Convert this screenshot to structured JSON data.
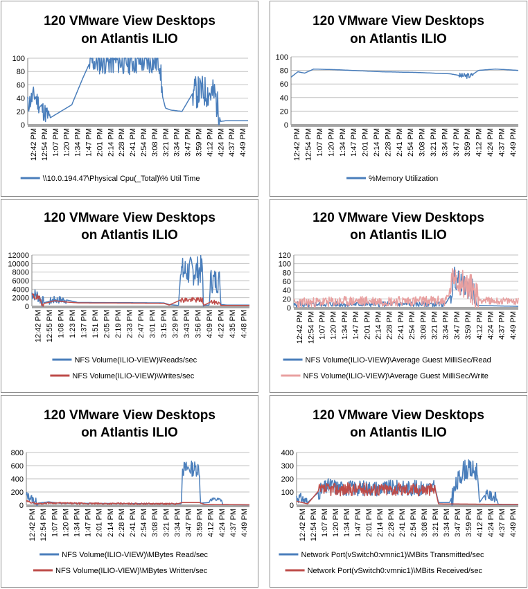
{
  "colors": {
    "blue": "#4a7ebb",
    "red": "#be4b48",
    "pink": "#e8a0a0",
    "grid": "#c0c0c0",
    "axis": "#808080"
  },
  "chart_data": [
    {
      "type": "line",
      "title": "120 VMware View Desktops on Atlantis ILIO",
      "title_lines": [
        "120 VMware View Desktops",
        "on Atlantis ILIO"
      ],
      "ylim": [
        0,
        100
      ],
      "yticks": [
        0,
        20,
        40,
        60,
        80,
        100
      ],
      "xticks": [
        "12:42 PM",
        "12:54 PM",
        "1:07 PM",
        "1:20 PM",
        "1:34 PM",
        "1:47 PM",
        "2:01 PM",
        "2:14 PM",
        "2:28 PM",
        "2:41 PM",
        "2:54 PM",
        "3:08 PM",
        "3:21 PM",
        "3:34 PM",
        "3:47 PM",
        "3:59 PM",
        "4:12 PM",
        "4:24 PM",
        "4:37 PM",
        "4:49 PM"
      ],
      "legend": "bottom",
      "series": [
        {
          "name": "\\\\10.0.194.47\\Physical Cpu(_Total)\\% Util Time",
          "color": "blue",
          "profile": [
            [
              0,
              30
            ],
            [
              0.6,
              45
            ],
            [
              1.2,
              25
            ],
            [
              2,
              10
            ],
            [
              3,
              20
            ],
            [
              4,
              30
            ],
            [
              5,
              70
            ],
            [
              5.6,
              92
            ],
            [
              6,
              95
            ],
            [
              12,
              95
            ],
            [
              12.2,
              45
            ],
            [
              12.5,
              25
            ],
            [
              13,
              22
            ],
            [
              14,
              20
            ],
            [
              15,
              48
            ],
            [
              16,
              50
            ],
            [
              17,
              45
            ],
            [
              17.5,
              5
            ],
            [
              18,
              6
            ],
            [
              20,
              6
            ]
          ],
          "noise": [
            [
              0,
              2,
              15
            ],
            [
              5.6,
              12.2,
              20
            ],
            [
              15,
              17.4,
              25
            ]
          ],
          "seed": 11
        }
      ]
    },
    {
      "type": "line",
      "title": "120 VMware View Desktops on Atlantis ILIO",
      "title_lines": [
        "120 VMware View Desktops",
        "on Atlantis ILIO"
      ],
      "ylim": [
        0,
        100
      ],
      "yticks": [
        0,
        20,
        40,
        60,
        80,
        100
      ],
      "xticks": [
        "12:42 PM",
        "12:54 PM",
        "1:07 PM",
        "1:20 PM",
        "1:34 PM",
        "1:47 PM",
        "2:01 PM",
        "2:14 PM",
        "2:28 PM",
        "2:41 PM",
        "2:54 PM",
        "3:08 PM",
        "3:21 PM",
        "3:34 PM",
        "3:47 PM",
        "3:59 PM",
        "4:12 PM",
        "4:24 PM",
        "4:37 PM",
        "4:49 PM"
      ],
      "legend": "bottom",
      "series": [
        {
          "name": "%Memory Utilization",
          "color": "blue",
          "profile": [
            [
              0,
              70
            ],
            [
              0.6,
              78
            ],
            [
              1.2,
              76
            ],
            [
              2,
              82
            ],
            [
              4,
              81
            ],
            [
              8,
              78
            ],
            [
              11,
              77
            ],
            [
              14,
              75
            ],
            [
              15,
              72
            ],
            [
              15.8,
              72
            ],
            [
              16.5,
              80
            ],
            [
              18,
              82
            ],
            [
              20,
              80
            ]
          ],
          "noise": [
            [
              14.8,
              16,
              4
            ]
          ],
          "seed": 3
        }
      ]
    },
    {
      "type": "line",
      "title": "120 VMware View Desktops on Atlantis ILIO",
      "title_lines": [
        "120 VMware View Desktops",
        "on Atlantis ILIO"
      ],
      "ylim": [
        0,
        12000
      ],
      "yticks": [
        0,
        2000,
        4000,
        6000,
        8000,
        10000,
        12000
      ],
      "xticks": [
        "12:42 PM",
        "12:55 PM",
        "1:08 PM",
        "1:23 PM",
        "1:37 PM",
        "1:51 PM",
        "2:05 PM",
        "2:19 PM",
        "2:33 PM",
        "2:47 PM",
        "3:01 PM",
        "3:15 PM",
        "3:29 PM",
        "3:43 PM",
        "3:56 PM",
        "4:09 PM",
        "4:22 PM",
        "4:35 PM",
        "4:48 PM"
      ],
      "legend": "bottom",
      "series": [
        {
          "name": "NFS Volume(ILIO-VIEW)\\Reads/sec",
          "color": "blue",
          "profile": [
            [
              0,
              3000
            ],
            [
              0.5,
              2500
            ],
            [
              1,
              800
            ],
            [
              2,
              1500
            ],
            [
              3,
              1500
            ],
            [
              4,
              900
            ],
            [
              11.5,
              800
            ],
            [
              12,
              400
            ],
            [
              12.8,
              200
            ],
            [
              13,
              8000
            ],
            [
              14.9,
              8500
            ],
            [
              15,
              200
            ],
            [
              15.5,
              300
            ],
            [
              15.6,
              6000
            ],
            [
              16.4,
              6000
            ],
            [
              16.5,
              400
            ],
            [
              17,
              300
            ],
            [
              19,
              300
            ]
          ],
          "noise": [
            [
              0,
              1,
              1500
            ],
            [
              1.5,
              3,
              900
            ],
            [
              13,
              15,
              3500
            ],
            [
              15.6,
              16.4,
              3000
            ]
          ],
          "seed": 7
        },
        {
          "name": "NFS Volume(ILIO-VIEW)\\Writes/sec",
          "color": "red",
          "profile": [
            [
              0,
              2500
            ],
            [
              0.5,
              2000
            ],
            [
              1,
              600
            ],
            [
              2,
              1300
            ],
            [
              3,
              1000
            ],
            [
              4,
              800
            ],
            [
              11.5,
              700
            ],
            [
              12,
              300
            ],
            [
              13,
              1500
            ],
            [
              14.9,
              1500
            ],
            [
              15,
              200
            ],
            [
              15.6,
              1000
            ],
            [
              16.4,
              800
            ],
            [
              16.5,
              200
            ],
            [
              19,
              200
            ]
          ],
          "noise": [
            [
              0,
              1,
              800
            ],
            [
              13,
              15,
              600
            ],
            [
              15.6,
              16.4,
              500
            ]
          ],
          "seed": 19
        }
      ]
    },
    {
      "type": "line",
      "title": "120 VMware View Desktops on Atlantis ILIO",
      "title_lines": [
        "120 VMware View Desktops",
        "on Atlantis ILIO"
      ],
      "ylim": [
        0,
        120
      ],
      "yticks": [
        0,
        20,
        40,
        60,
        80,
        100,
        120
      ],
      "xticks": [
        "12:42 PM",
        "12:54 PM",
        "1:07 PM",
        "1:20 PM",
        "1:34 PM",
        "1:47 PM",
        "2:01 PM",
        "2:14 PM",
        "2:28 PM",
        "2:41 PM",
        "2:54 PM",
        "3:08 PM",
        "3:21 PM",
        "3:34 PM",
        "3:47 PM",
        "3:59 PM",
        "4:12 PM",
        "4:24 PM",
        "4:37 PM",
        "4:49 PM"
      ],
      "legend": "bottom",
      "series": [
        {
          "name": "NFS Volume(ILIO-VIEW)\\Average Guest MilliSec/Read",
          "color": "blue",
          "profile": [
            [
              0,
              5
            ],
            [
              0.5,
              10
            ],
            [
              1,
              5
            ],
            [
              2,
              8
            ],
            [
              13.5,
              8
            ],
            [
              14,
              30
            ],
            [
              14.3,
              70
            ],
            [
              15,
              50
            ],
            [
              16,
              40
            ],
            [
              16.3,
              5
            ],
            [
              20,
              3
            ]
          ],
          "noise": [
            [
              0,
              13.5,
              6
            ],
            [
              14,
              16.2,
              25
            ]
          ],
          "seed": 5
        },
        {
          "name": "NFS Volume(ILIO-VIEW)\\Average Guest MilliSec/Write",
          "color": "pink",
          "profile": [
            [
              0,
              10
            ],
            [
              2,
              12
            ],
            [
              6,
              15
            ],
            [
              13.5,
              15
            ],
            [
              14,
              40
            ],
            [
              14.3,
              80
            ],
            [
              15,
              55
            ],
            [
              16,
              40
            ],
            [
              16.5,
              18
            ],
            [
              18,
              15
            ],
            [
              20,
              15
            ]
          ],
          "noise": [
            [
              0,
              14,
              12
            ],
            [
              14,
              16.5,
              35
            ],
            [
              16.5,
              20,
              8
            ]
          ],
          "seed": 23
        }
      ]
    },
    {
      "type": "line",
      "title": "120 VMware View Desktops on Atlantis ILIO",
      "title_lines": [
        "120 VMware View Desktops",
        "on Atlantis ILIO"
      ],
      "ylim": [
        0,
        800
      ],
      "yticks": [
        0,
        200,
        400,
        600,
        800
      ],
      "xticks": [
        "12:42 PM",
        "12:54 PM",
        "1:07 PM",
        "1:20 PM",
        "1:34 PM",
        "1:47 PM",
        "2:01 PM",
        "2:14 PM",
        "2:28 PM",
        "2:41 PM",
        "2:54 PM",
        "3:08 PM",
        "3:21 PM",
        "3:34 PM",
        "3:47 PM",
        "3:59 PM",
        "4:12 PM",
        "4:24 PM",
        "4:37 PM",
        "4:49 PM"
      ],
      "legend": "bottom",
      "series": [
        {
          "name": "NFS Volume(ILIO-VIEW)\\MBytes Read/sec",
          "color": "blue",
          "profile": [
            [
              0,
              150
            ],
            [
              0.5,
              100
            ],
            [
              1,
              30
            ],
            [
              2,
              50
            ],
            [
              3,
              30
            ],
            [
              13.9,
              20
            ],
            [
              14,
              550
            ],
            [
              15.5,
              560
            ],
            [
              15.6,
              30
            ],
            [
              16.4,
              40
            ],
            [
              16.5,
              90
            ],
            [
              17.5,
              80
            ],
            [
              17.6,
              10
            ],
            [
              20,
              5
            ]
          ],
          "noise": [
            [
              0,
              1,
              60
            ],
            [
              14,
              15.5,
              120
            ],
            [
              16.5,
              17.5,
              30
            ]
          ],
          "seed": 13
        },
        {
          "name": "NFS Volume(ILIO-VIEW)\\MBytes Written/sec",
          "color": "red",
          "profile": [
            [
              0,
              60
            ],
            [
              1,
              20
            ],
            [
              2,
              35
            ],
            [
              5,
              25
            ],
            [
              13.5,
              20
            ],
            [
              14,
              40
            ],
            [
              15.5,
              40
            ],
            [
              16,
              10
            ],
            [
              20,
              5
            ]
          ],
          "noise": [
            [
              0,
              13.5,
              12
            ]
          ],
          "seed": 29
        }
      ]
    },
    {
      "type": "line",
      "title": "120 VMware View Desktops on Atlantis ILIO",
      "title_lines": [
        "120 VMware View Desktops",
        "on Atlantis ILIO"
      ],
      "ylim": [
        0,
        400
      ],
      "yticks": [
        0,
        100,
        200,
        300,
        400
      ],
      "xticks": [
        "12:42 PM",
        "12:54 PM",
        "1:07 PM",
        "1:20 PM",
        "1:34 PM",
        "1:47 PM",
        "2:01 PM",
        "2:14 PM",
        "2:28 PM",
        "2:41 PM",
        "2:54 PM",
        "3:08 PM",
        "3:21 PM",
        "3:34 PM",
        "3:47 PM",
        "3:59 PM",
        "4:12 PM",
        "4:24 PM",
        "4:37 PM",
        "4:49 PM"
      ],
      "legend": "bottom",
      "series": [
        {
          "name": "Network Port(vSwitch0:vmnic1)\\MBits Transmitted/sec",
          "color": "blue",
          "profile": [
            [
              0,
              60
            ],
            [
              0.5,
              50
            ],
            [
              1,
              20
            ],
            [
              2,
              100
            ],
            [
              3,
              150
            ],
            [
              4,
              130
            ],
            [
              12.5,
              130
            ],
            [
              12.8,
              20
            ],
            [
              13.8,
              20
            ],
            [
              14,
              60
            ],
            [
              15,
              270
            ],
            [
              16.3,
              260
            ],
            [
              16.5,
              20
            ],
            [
              17,
              80
            ],
            [
              18,
              60
            ],
            [
              18.2,
              5
            ],
            [
              20,
              5
            ]
          ],
          "noise": [
            [
              0,
              1,
              40
            ],
            [
              2,
              12.5,
              60
            ],
            [
              14,
              16.3,
              80
            ],
            [
              17,
              18,
              40
            ]
          ],
          "seed": 31
        },
        {
          "name": "Network Port(vSwitch0:vmnic1)\\MBits Received/sec",
          "color": "red",
          "profile": [
            [
              0,
              30
            ],
            [
              1,
              10
            ],
            [
              2,
              110
            ],
            [
              3,
              120
            ],
            [
              12.5,
              120
            ],
            [
              12.8,
              10
            ],
            [
              20,
              5
            ]
          ],
          "noise": [
            [
              2,
              12.5,
              50
            ]
          ],
          "seed": 37
        }
      ]
    }
  ]
}
